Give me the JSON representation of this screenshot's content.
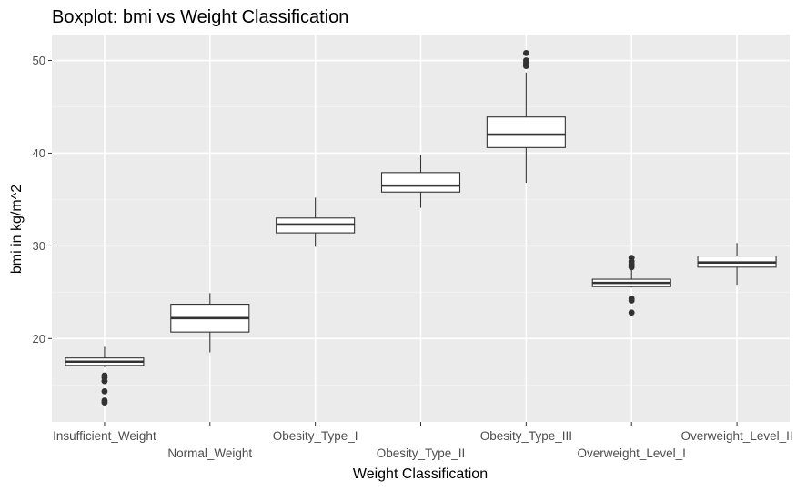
{
  "chart_data": {
    "type": "boxplot",
    "title": "Boxplot: bmi vs Weight Classification",
    "xlabel": "Weight Classification",
    "ylabel": "bmi in kg/m^2",
    "ylim": [
      11,
      52.8
    ],
    "yticks": [
      20,
      30,
      40,
      50
    ],
    "grid": true,
    "categories": [
      "Insufficient_Weight",
      "Normal_Weight",
      "Obesity_Type_I",
      "Obesity_Type_II",
      "Obesity_Type_III",
      "Overweight_Level_I",
      "Overweight_Level_II"
    ],
    "boxes": [
      {
        "whisker_low": 16.9,
        "q1": 17.1,
        "median": 17.5,
        "q3": 17.9,
        "whisker_high": 19.1,
        "outliers": [
          16.0,
          15.8,
          15.4,
          14.3,
          13.3,
          13.1
        ]
      },
      {
        "whisker_low": 18.5,
        "q1": 20.7,
        "median": 22.2,
        "q3": 23.7,
        "whisker_high": 24.9,
        "outliers": []
      },
      {
        "whisker_low": 29.9,
        "q1": 31.4,
        "median": 32.3,
        "q3": 33.0,
        "whisker_high": 35.2,
        "outliers": []
      },
      {
        "whisker_low": 34.1,
        "q1": 35.8,
        "median": 36.5,
        "q3": 37.9,
        "whisker_high": 39.8,
        "outliers": []
      },
      {
        "whisker_low": 36.8,
        "q1": 40.6,
        "median": 42.0,
        "q3": 43.9,
        "whisker_high": 48.7,
        "outliers": [
          49.4,
          49.7,
          50.0,
          50.8
        ]
      },
      {
        "whisker_low": 25.5,
        "q1": 25.6,
        "median": 26.0,
        "q3": 26.4,
        "whisker_high": 27.6,
        "outliers": [
          28.7,
          28.3,
          28.0,
          27.7,
          24.3,
          24.1,
          22.8
        ]
      },
      {
        "whisker_low": 25.8,
        "q1": 27.7,
        "median": 28.2,
        "q3": 28.9,
        "whisker_high": 30.3,
        "outliers": []
      }
    ]
  }
}
